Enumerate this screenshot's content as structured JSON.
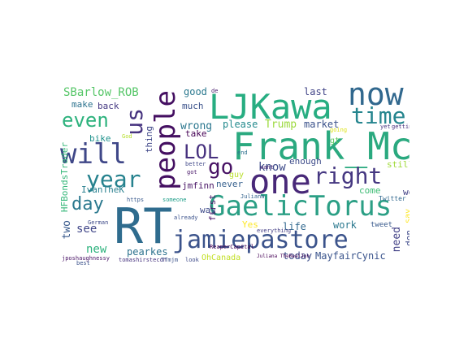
{
  "words": [
    {
      "text": "RT",
      "color": "#2f6c8e"
    },
    {
      "text": "Frank_McG",
      "color": "#2aa97f"
    },
    {
      "text": "GaelicTorus",
      "color": "#2b9f85"
    },
    {
      "text": "jamiepastore",
      "color": "#3b538b"
    },
    {
      "text": "LJKawa",
      "color": "#27ad81"
    },
    {
      "text": "one",
      "color": "#482878"
    },
    {
      "text": "people",
      "color": "#440f61"
    },
    {
      "text": "now",
      "color": "#31688e"
    },
    {
      "text": "will",
      "color": "#3f4788"
    },
    {
      "text": "year",
      "color": "#26828e"
    },
    {
      "text": "time",
      "color": "#25858e"
    },
    {
      "text": "right",
      "color": "#453781"
    },
    {
      "text": "us",
      "color": "#46337f"
    },
    {
      "text": "LOL",
      "color": "#46307e"
    },
    {
      "text": "even",
      "color": "#2db27d"
    },
    {
      "text": "go",
      "color": "#471164"
    },
    {
      "text": "day",
      "color": "#2a788e"
    },
    {
      "text": "know",
      "color": "#3e4c8a"
    },
    {
      "text": "SBarlow_ROB",
      "color": "#55c667"
    },
    {
      "text": "Trump",
      "color": "#9bd93c"
    },
    {
      "text": "IvanTheK",
      "color": "#277f8e"
    },
    {
      "text": "HFBondsTrader",
      "color": "#35b779"
    },
    {
      "text": "two",
      "color": "#38598c"
    },
    {
      "text": "see",
      "color": "#404688"
    },
    {
      "text": "new",
      "color": "#2db27d"
    },
    {
      "text": "pearkes",
      "color": "#2c728e"
    },
    {
      "text": "MayfairCynic",
      "color": "#3a548c"
    },
    {
      "text": "today",
      "color": "#3d4e8a"
    },
    {
      "text": "need",
      "color": "#424186"
    },
    {
      "text": "don",
      "color": "#3e4989"
    },
    {
      "text": "work",
      "color": "#2a788e"
    },
    {
      "text": "life",
      "color": "#31688e"
    },
    {
      "text": "Yes",
      "color": "#fde725"
    },
    {
      "text": "OhCanada",
      "color": "#c2df23"
    },
    {
      "text": "wrong",
      "color": "#2a768e"
    },
    {
      "text": "please",
      "color": "#238a8d"
    },
    {
      "text": "market",
      "color": "#3b528b"
    },
    {
      "text": "jmfinn",
      "color": "#471365"
    },
    {
      "text": "never",
      "color": "#355f8d"
    },
    {
      "text": "good",
      "color": "#2a788e"
    },
    {
      "text": "much",
      "color": "#3b528b"
    },
    {
      "text": "last",
      "color": "#414487"
    },
    {
      "text": "make",
      "color": "#2c738e"
    },
    {
      "text": "back",
      "color": "#453882"
    },
    {
      "text": "bike",
      "color": "#20928c"
    },
    {
      "text": "take",
      "color": "#440154"
    },
    {
      "text": "way",
      "color": "#3e4a89"
    },
    {
      "text": "guy",
      "color": "#b8de29"
    },
    {
      "text": "thing",
      "color": "#3f4788"
    },
    {
      "text": "first",
      "color": "#481769"
    },
    {
      "text": "still",
      "color": "#a0da39"
    },
    {
      "text": "come",
      "color": "#3dbc74"
    },
    {
      "text": "well",
      "color": "#424086"
    },
    {
      "text": "enough",
      "color": "#3e4c8a"
    },
    {
      "text": "gt",
      "color": "#5ec962"
    },
    {
      "text": "say",
      "color": "#fde725"
    },
    {
      "text": "tweet",
      "color": "#38598c"
    },
    {
      "text": "Twitter",
      "color": "#31688e"
    },
    {
      "text": "getting",
      "color": "#472d7b"
    },
    {
      "text": "yet",
      "color": "#46337f"
    },
    {
      "text": "going",
      "color": "#dde318"
    },
    {
      "text": "everything",
      "color": "#433e85"
    },
    {
      "text": "ReaperCapital",
      "color": "#440154"
    },
    {
      "text": "already",
      "color": "#3b528b"
    },
    {
      "text": "someone",
      "color": "#1f9e89"
    },
    {
      "text": "https",
      "color": "#38598c"
    },
    {
      "text": "German",
      "color": "#3e4a89"
    },
    {
      "text": "better",
      "color": "#3f4788"
    },
    {
      "text": "got",
      "color": "#481668"
    },
    {
      "text": "want",
      "color": "#482475"
    },
    {
      "text": "end",
      "color": "#2d708e"
    },
    {
      "text": "de",
      "color": "#481b6d"
    },
    {
      "text": "best",
      "color": "#3b528b"
    },
    {
      "text": "look",
      "color": "#3e4a89"
    },
    {
      "text": "God",
      "color": "#b5de2b"
    },
    {
      "text": "jposhaughnessy",
      "color": "#471164"
    },
    {
      "text": "tomashirstecon",
      "color": "#46337f"
    },
    {
      "text": "TTmjm",
      "color": "#3b528b"
    },
    {
      "text": "Juliana",
      "color": "#33638d"
    },
    {
      "text": "Juliana TheRealJon",
      "color": "#440154"
    }
  ]
}
